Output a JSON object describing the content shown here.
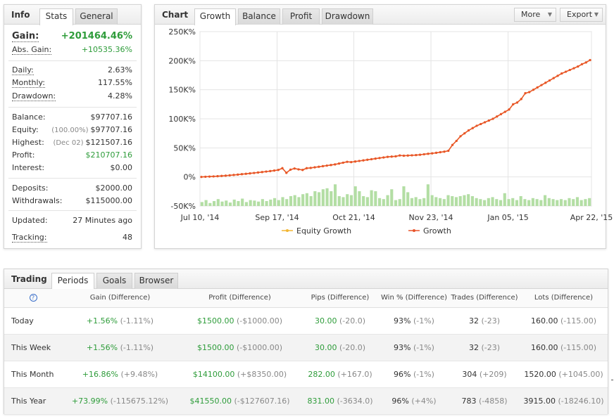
{
  "info": {
    "title": "Info",
    "tabs": [
      "Stats",
      "General"
    ],
    "gain_label": "Gain:",
    "gain_value": "+201464.46%",
    "abs_gain_label": "Abs. Gain:",
    "abs_gain_value": "+10535.36%",
    "daily_label": "Daily:",
    "daily_value": "2.63%",
    "monthly_label": "Monthly:",
    "monthly_value": "117.55%",
    "drawdown_label": "Drawdown:",
    "drawdown_value": "4.28%",
    "balance_label": "Balance:",
    "balance_value": "$97707.16",
    "equity_label": "Equity:",
    "equity_sub": "(100.00%)",
    "equity_value": "$97707.16",
    "highest_label": "Highest:",
    "highest_sub": "(Dec 02)",
    "highest_value": "$121507.16",
    "profit_label": "Profit:",
    "profit_value": "$210707.16",
    "interest_label": "Interest:",
    "interest_value": "$0.00",
    "deposits_label": "Deposits:",
    "deposits_value": "$2000.00",
    "withdrawals_label": "Withdrawals:",
    "withdrawals_value": "$115000.00",
    "updated_label": "Updated:",
    "updated_value": "27 Minutes ago",
    "tracking_label": "Tracking:",
    "tracking_value": "48"
  },
  "chart": {
    "title": "Chart",
    "tabs": [
      "Growth",
      "Balance",
      "Profit",
      "Drawdown"
    ],
    "more_label": "More",
    "export_label": "Export",
    "colors": {
      "growth": "#e8542a",
      "equity": "#f2b632",
      "bars": "#b3dea4",
      "grid": "#e4e4e4"
    }
  },
  "chart_data": {
    "type": "line",
    "title": "",
    "ylim": [
      -50000,
      250000
    ],
    "yticks": [
      "250K%",
      "200K%",
      "150K%",
      "100K%",
      "50K%",
      "0%",
      "-50K%"
    ],
    "xticks": [
      "Jul 10, '14",
      "Sep 17, '14",
      "Oct 21, '14",
      "Nov 23, '14",
      "Jan 05, '15",
      "Apr 22, '15"
    ],
    "legend": [
      "Equity Growth",
      "Growth"
    ],
    "legend_position": "bottom",
    "series": [
      {
        "name": "Growth",
        "values": [
          0,
          300,
          600,
          900,
          1300,
          1700,
          2200,
          2800,
          3400,
          4000,
          4700,
          5400,
          6100,
          6800,
          7600,
          8400,
          9200,
          10000,
          11000,
          12000,
          15000,
          7000,
          12500,
          14500,
          13000,
          12000,
          15000,
          15500,
          16500,
          17500,
          18500,
          19500,
          20500,
          21500,
          23000,
          24500,
          26000,
          25500,
          26500,
          27500,
          28500,
          29500,
          30500,
          31500,
          32500,
          33500,
          34500,
          35000,
          35500,
          37000,
          36500,
          36800,
          37200,
          37600,
          38200,
          39000,
          39800,
          40600,
          41500,
          42500,
          43500,
          45000,
          55000,
          62000,
          70000,
          75000,
          80000,
          84000,
          88000,
          91000,
          94000,
          97000,
          100000,
          104000,
          108000,
          112000,
          116000,
          125000,
          128000,
          134000,
          144000,
          146000,
          150000,
          154000,
          158000,
          162000,
          166000,
          170000,
          174000,
          178000,
          181000,
          184000,
          187000,
          190000,
          194000,
          197000,
          201000
        ]
      },
      {
        "name": "Equity Growth",
        "values": [
          0,
          300,
          600,
          900,
          1300,
          1700,
          2200,
          2800,
          3400,
          4000,
          4700,
          5400,
          6100,
          6800,
          7600,
          8400,
          9200,
          10000,
          11000,
          12000,
          15000,
          7000,
          12500,
          14500,
          13000,
          12000,
          15000,
          15500,
          16500,
          17500,
          18500,
          19500,
          20500,
          21500,
          23000,
          24500,
          26000,
          25500,
          26500,
          27500,
          28500,
          29500,
          30500,
          31500,
          32500,
          33500,
          34500,
          35000,
          35500,
          37000,
          36500,
          36800,
          37200,
          37600,
          38200,
          39000,
          39800,
          40600,
          41500,
          42500,
          43500,
          45000,
          55000,
          62000,
          70000,
          75000,
          80000,
          84000,
          88000,
          91000,
          94000,
          97000,
          100000,
          104000,
          108000,
          112000,
          116000,
          125000,
          128000,
          134000,
          144000,
          146000,
          150000,
          154000,
          158000,
          162000,
          166000,
          170000,
          174000,
          178000,
          181000,
          184000,
          187000,
          190000,
          194000,
          197000,
          201000
        ]
      }
    ],
    "bars": [
      8,
      12,
      6,
      10,
      14,
      9,
      11,
      7,
      13,
      10,
      15,
      8,
      12,
      11,
      9,
      14,
      10,
      13,
      16,
      12,
      18,
      14,
      20,
      22,
      18,
      24,
      26,
      20,
      30,
      28,
      34,
      36,
      30,
      44,
      20,
      18,
      24,
      22,
      40,
      30,
      20,
      18,
      32,
      30,
      16,
      14,
      22,
      34,
      12,
      14,
      40,
      28,
      16,
      18,
      14,
      16,
      44,
      22,
      18,
      16,
      14,
      22,
      20,
      18,
      20,
      22,
      24,
      20,
      16,
      14,
      12,
      16,
      18,
      14,
      12,
      26,
      14,
      16,
      12,
      20,
      14,
      12,
      16,
      14,
      12,
      22,
      16,
      14,
      12,
      14,
      12,
      16,
      14,
      18,
      12,
      14,
      16
    ]
  },
  "trading": {
    "title": "Trading",
    "tabs": [
      "Periods",
      "Goals",
      "Browser"
    ],
    "help_symbol": "?",
    "columns": [
      "Gain (Difference)",
      "Profit (Difference)",
      "Pips (Difference)",
      "Win % (Difference)",
      "Trades (Difference)",
      "Lots (Difference)"
    ],
    "rows": [
      {
        "period": "Today",
        "gain": "+1.56%",
        "gain_d": "(-1.11%)",
        "profit": "$1500.00",
        "profit_d": "(-$1000.00)",
        "pips": "30.00",
        "pips_d": "(-20.0)",
        "win": "93%",
        "win_d": "(-1%)",
        "trades": "32",
        "trades_d": "(-23)",
        "lots": "160.00",
        "lots_d": "(-115.00)"
      },
      {
        "period": "This Week",
        "gain": "+1.56%",
        "gain_d": "(-1.11%)",
        "profit": "$1500.00",
        "profit_d": "(-$1000.00)",
        "pips": "30.00",
        "pips_d": "(-20.0)",
        "win": "93%",
        "win_d": "(-1%)",
        "trades": "32",
        "trades_d": "(-23)",
        "lots": "160.00",
        "lots_d": "(-115.00)"
      },
      {
        "period": "This Month",
        "gain": "+16.86%",
        "gain_d": "(+9.48%)",
        "profit": "$14100.00",
        "profit_d": "(+$8350.00)",
        "pips": "282.00",
        "pips_d": "(+167.0)",
        "win": "96%",
        "win_d": "(-1%)",
        "trades": "304",
        "trades_d": "(+209)",
        "lots": "1520.00",
        "lots_d": "(+1045.00)"
      },
      {
        "period": "This Year",
        "gain": "+73.99%",
        "gain_d": "(-115675.12%)",
        "profit": "$41550.00",
        "profit_d": "(-$127607.16)",
        "pips": "831.00",
        "pips_d": "(-3634.0)",
        "win": "96%",
        "win_d": "(+4%)",
        "trades": "783",
        "trades_d": "(-4858)",
        "lots": "3915.00",
        "lots_d": "(-18246.10)"
      }
    ]
  }
}
